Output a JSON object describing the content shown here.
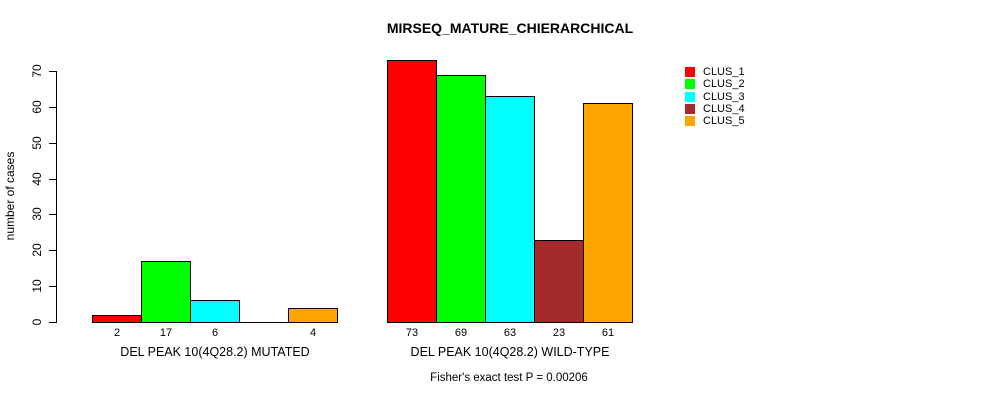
{
  "chart_data": {
    "type": "bar",
    "title": "MIRSEQ_MATURE_CHIERARCHICAL",
    "ylabel": "number of cases",
    "yticks": [
      0,
      10,
      20,
      30,
      40,
      50,
      60,
      70
    ],
    "ylim": [
      0,
      73
    ],
    "grid": false,
    "legend_position": "top-right",
    "categories": [
      "DEL PEAK 10(4Q28.2) MUTATED",
      "DEL PEAK 10(4Q28.2) WILD-TYPE"
    ],
    "series": [
      {
        "name": "CLUS_1",
        "color": "#ff0000",
        "values": [
          2,
          73
        ]
      },
      {
        "name": "CLUS_2",
        "color": "#00ff00",
        "values": [
          17,
          69
        ]
      },
      {
        "name": "CLUS_3",
        "color": "#00ffff",
        "values": [
          6,
          63
        ]
      },
      {
        "name": "CLUS_4",
        "color": "#a52a2a",
        "values": [
          0,
          23
        ]
      },
      {
        "name": "CLUS_5",
        "color": "#ffa500",
        "values": [
          4,
          61
        ]
      }
    ],
    "bar_value_labels": [
      [
        "2",
        "17",
        "6",
        "",
        "4"
      ],
      [
        "73",
        "69",
        "63",
        "23",
        "61"
      ]
    ],
    "annotation": "Fisher's exact test P = 0.00206"
  }
}
